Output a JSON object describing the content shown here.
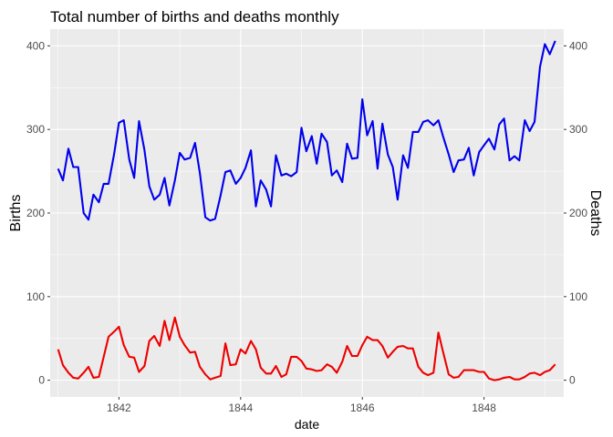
{
  "chart_data": {
    "type": "line",
    "title": "Total number of births and deaths monthly",
    "xlabel": "date",
    "ylabel_left": "Births",
    "ylabel_right": "Deaths",
    "xlim": [
      1840.87,
      1849.31
    ],
    "ylim": [
      -20,
      420
    ],
    "x_ticks": [
      1842,
      1844,
      1846,
      1848
    ],
    "y_ticks": [
      0,
      100,
      200,
      300,
      400
    ],
    "x_tick_labels": [
      "1842",
      "1844",
      "1846",
      "1848"
    ],
    "y_tick_labels": [
      "0",
      "100",
      "200",
      "300",
      "400"
    ],
    "grid": true,
    "legend": "none",
    "colors": {
      "panel": "#ebebeb",
      "grid_major": "#ffffff",
      "births": "#0000ee",
      "deaths": "#ee0000",
      "left_axis_title": "#0000ee",
      "right_axis_title": "#ee0000"
    },
    "series": [
      {
        "key": "births",
        "color": "#0000ee",
        "x": [
          1841.0,
          1841.08,
          1841.17,
          1841.25,
          1841.33,
          1841.42,
          1841.5,
          1841.58,
          1841.67,
          1841.75,
          1841.83,
          1841.92,
          1842.0,
          1842.08,
          1842.17,
          1842.25,
          1842.33,
          1842.42,
          1842.5,
          1842.58,
          1842.67,
          1842.75,
          1842.83,
          1842.92,
          1843.0,
          1843.08,
          1843.17,
          1843.25,
          1843.33,
          1843.42,
          1843.5,
          1843.58,
          1843.67,
          1843.75,
          1843.83,
          1843.92,
          1844.0,
          1844.08,
          1844.17,
          1844.25,
          1844.33,
          1844.42,
          1844.5,
          1844.58,
          1844.67,
          1844.75,
          1844.83,
          1844.92,
          1845.0,
          1845.08,
          1845.17,
          1845.25,
          1845.33,
          1845.42,
          1845.5,
          1845.58,
          1845.67,
          1845.75,
          1845.83,
          1845.92,
          1846.0,
          1846.08,
          1846.17,
          1846.25,
          1846.33,
          1846.42,
          1846.5,
          1846.58,
          1846.67,
          1846.75,
          1846.83,
          1846.92,
          1847.0,
          1847.08,
          1847.17,
          1847.25,
          1847.33,
          1847.42,
          1847.5,
          1847.58,
          1847.67,
          1847.75,
          1847.83,
          1847.92,
          1848.0,
          1848.08,
          1848.17,
          1848.25,
          1848.33,
          1848.42,
          1848.5,
          1848.58,
          1848.67,
          1848.75,
          1848.83,
          1848.92,
          1849.0,
          1849.08,
          1849.17
        ],
        "values": [
          253,
          239,
          277,
          255,
          255,
          200,
          192,
          222,
          213,
          235,
          235,
          270,
          308,
          311,
          264,
          242,
          310,
          275,
          232,
          216,
          222,
          242,
          209,
          239,
          272,
          264,
          266,
          284,
          248,
          195,
          191,
          193,
          221,
          249,
          251,
          235,
          242,
          254,
          275,
          208,
          239,
          228,
          208,
          269,
          245,
          247,
          244,
          249,
          302,
          274,
          292,
          259,
          295,
          285,
          245,
          251,
          237,
          283,
          265,
          266,
          336,
          293,
          310,
          253,
          307,
          270,
          255,
          216,
          269,
          254,
          297,
          297,
          309,
          311,
          305,
          311,
          291,
          270,
          249,
          263,
          264,
          278,
          245,
          273,
          281,
          289,
          276,
          306,
          313,
          263,
          268,
          263,
          311,
          298,
          309,
          375,
          402,
          390,
          406
        ]
      },
      {
        "key": "deaths",
        "color": "#ee0000",
        "x": [
          1841.0,
          1841.08,
          1841.17,
          1841.25,
          1841.33,
          1841.42,
          1841.5,
          1841.58,
          1841.67,
          1841.75,
          1841.83,
          1841.92,
          1842.0,
          1842.08,
          1842.17,
          1842.25,
          1842.33,
          1842.42,
          1842.5,
          1842.58,
          1842.67,
          1842.75,
          1842.83,
          1842.92,
          1843.0,
          1843.08,
          1843.17,
          1843.25,
          1843.33,
          1843.42,
          1843.5,
          1843.58,
          1843.67,
          1843.75,
          1843.83,
          1843.92,
          1844.0,
          1844.08,
          1844.17,
          1844.25,
          1844.33,
          1844.42,
          1844.5,
          1844.58,
          1844.67,
          1844.75,
          1844.83,
          1844.92,
          1845.0,
          1845.08,
          1845.17,
          1845.25,
          1845.33,
          1845.42,
          1845.5,
          1845.58,
          1845.67,
          1845.75,
          1845.83,
          1845.92,
          1846.0,
          1846.08,
          1846.17,
          1846.25,
          1846.33,
          1846.42,
          1846.5,
          1846.58,
          1846.67,
          1846.75,
          1846.83,
          1846.92,
          1847.0,
          1847.08,
          1847.17,
          1847.25,
          1847.33,
          1847.42,
          1847.5,
          1847.58,
          1847.67,
          1847.75,
          1847.83,
          1847.92,
          1848.0,
          1848.08,
          1848.17,
          1848.25,
          1848.33,
          1848.42,
          1848.5,
          1848.58,
          1848.67,
          1848.75,
          1848.83,
          1848.92,
          1849.0,
          1849.08,
          1849.17
        ],
        "values": [
          37,
          18,
          9,
          3,
          2,
          9,
          16,
          3,
          4,
          28,
          52,
          58,
          64,
          42,
          28,
          27,
          10,
          17,
          47,
          53,
          41,
          71,
          48,
          75,
          52,
          42,
          33,
          34,
          16,
          7,
          1,
          3,
          5,
          44,
          18,
          19,
          37,
          32,
          47,
          37,
          15,
          8,
          8,
          17,
          4,
          7,
          28,
          28,
          23,
          14,
          13,
          11,
          12,
          19,
          16,
          9,
          22,
          41,
          29,
          29,
          42,
          52,
          48,
          48,
          41,
          27,
          34,
          40,
          41,
          38,
          38,
          16,
          9,
          6,
          9,
          57,
          33,
          7,
          3,
          4,
          12,
          12,
          12,
          10,
          10,
          2,
          0,
          1,
          3,
          4,
          1,
          1,
          4,
          8,
          9,
          6,
          10,
          12,
          19
        ]
      }
    ]
  }
}
